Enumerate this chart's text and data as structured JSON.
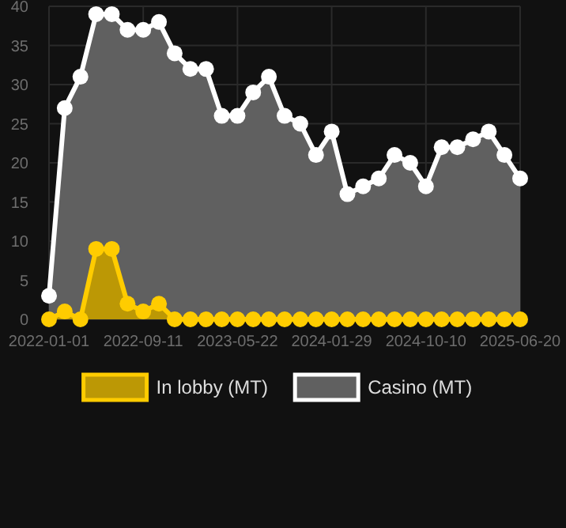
{
  "chart_data": {
    "type": "area",
    "categories": [
      "2022-01-01",
      null,
      null,
      null,
      null,
      null,
      "2022-09-11",
      null,
      null,
      null,
      null,
      null,
      "2023-05-22",
      null,
      null,
      null,
      null,
      null,
      "2024-01-29",
      null,
      null,
      null,
      null,
      null,
      "2024-10-10",
      null,
      null,
      null,
      null,
      null,
      "2025-06-20"
    ],
    "series": [
      {
        "name": "In lobby (MT)",
        "color": "#ffcc00",
        "values": [
          0,
          1,
          0,
          9,
          9,
          2,
          1,
          2,
          0,
          0,
          0,
          0,
          0,
          0,
          0,
          0,
          0,
          0,
          0,
          0,
          0,
          0,
          0,
          0,
          0,
          0,
          0,
          0,
          0,
          0,
          0
        ]
      },
      {
        "name": "Casino (MT)",
        "color": "#ffffff",
        "values": [
          3,
          27,
          31,
          39,
          39,
          37,
          37,
          38,
          34,
          32,
          32,
          26,
          26,
          29,
          31,
          26,
          25,
          21,
          24,
          16,
          17,
          18,
          21,
          20,
          17,
          22,
          22,
          23,
          24,
          21,
          18
        ]
      }
    ],
    "ylim": [
      0,
      40
    ],
    "yticks": [
      0,
      5,
      10,
      15,
      20,
      25,
      30,
      35,
      40
    ],
    "grid": true,
    "legend": "bottom",
    "marker": "circle",
    "line_style": "solid"
  }
}
